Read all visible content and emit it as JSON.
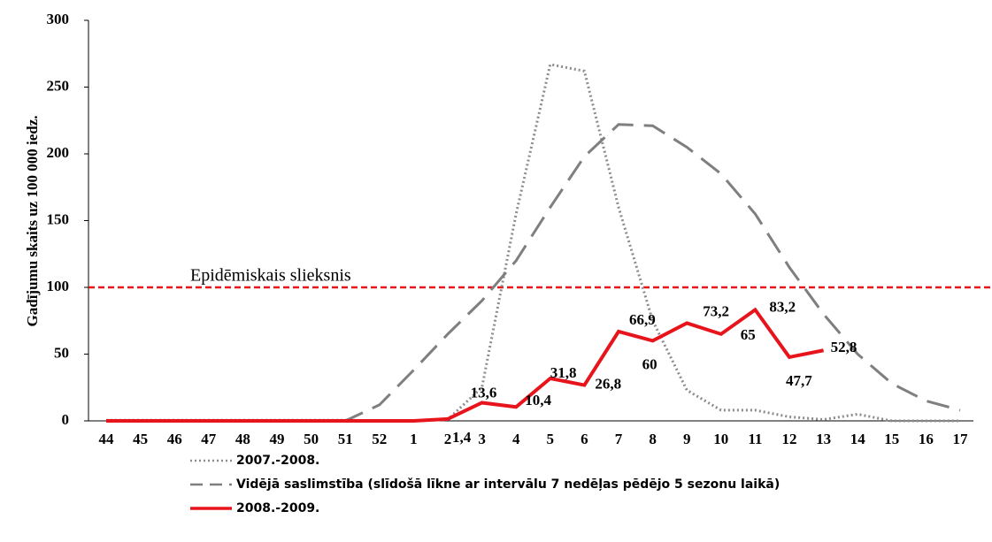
{
  "chart_data": {
    "type": "line",
    "ylabel": "Gadījumu skaits uz 100 000 iedz.",
    "categories": [
      "44",
      "45",
      "46",
      "47",
      "48",
      "49",
      "50",
      "51",
      "52",
      "1",
      "2",
      "3",
      "4",
      "5",
      "6",
      "7",
      "8",
      "9",
      "10",
      "11",
      "12",
      "13",
      "14",
      "15",
      "16",
      "17"
    ],
    "ylim": [
      0,
      300
    ],
    "yticks": [
      0,
      50,
      100,
      150,
      200,
      250,
      300
    ],
    "threshold": {
      "value": 100,
      "label": "Epidēmiskais slieksnis",
      "color": "#e8141c"
    },
    "series": [
      {
        "name": "2007.-2008.",
        "color": "#8c8c8c",
        "style": "dotted",
        "values": [
          0.5,
          0.5,
          0.5,
          0.5,
          0.5,
          0.5,
          0.5,
          0.5,
          0,
          0,
          1,
          25,
          155,
          267,
          262,
          160,
          75,
          23,
          8,
          8,
          3,
          1,
          5,
          0,
          0,
          0
        ]
      },
      {
        "name": "Vidējā saslimstība (slīdošā līkne ar intervālu 7 nedēļas pēdējo 5 sezonu laikā)",
        "color": "#7f7f7f",
        "style": "dashed",
        "values": [
          0,
          0,
          0,
          0,
          0,
          0,
          0,
          0,
          12,
          38,
          65,
          90,
          120,
          160,
          198,
          222,
          221,
          205,
          185,
          155,
          115,
          80,
          50,
          28,
          15,
          8
        ]
      },
      {
        "name": "2008.-2009.",
        "color": "#e8141c",
        "style": "solid",
        "values": [
          0,
          0,
          0,
          0,
          0,
          0,
          0,
          0,
          0,
          0,
          1.4,
          13.6,
          10.4,
          31.8,
          26.8,
          66.9,
          60,
          73.2,
          65,
          83.2,
          47.7,
          52.8,
          null,
          null,
          null,
          null
        ],
        "value_labels": [
          null,
          null,
          null,
          null,
          null,
          null,
          null,
          null,
          null,
          null,
          "1,4",
          "13,6",
          "10,4",
          "31,8",
          "26,8",
          "66,9",
          "60",
          "73,2",
          "65",
          "83,2",
          "47,7",
          "52,8",
          null,
          null,
          null,
          null
        ]
      }
    ]
  }
}
